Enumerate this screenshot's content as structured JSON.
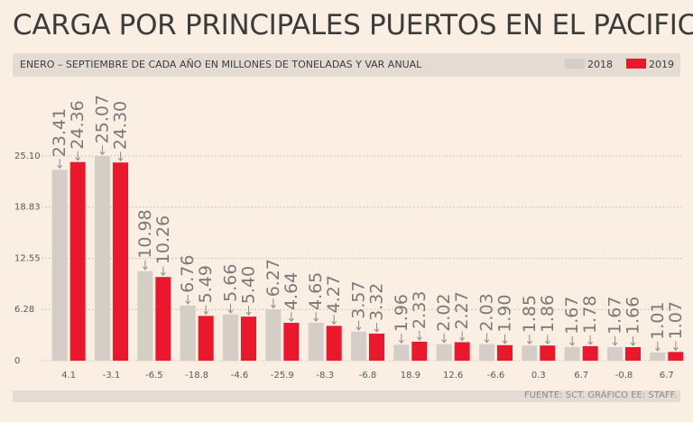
{
  "chart_data": {
    "type": "bar",
    "title": "CARGA POR PRINCIPALES PUERTOS EN EL PACIFICO",
    "subtitle": "ENERO – SEPTIEMBRE DE CADA AÑO EN MILLONES DE TONELADAS Y VAR ANUAL",
    "source": "FUENTE: SCT. GRÁFICO EE: STAFF.",
    "categories": [
      "4.1",
      "-3.1",
      "-6.5",
      "-18.8",
      "-4.6",
      "-25.9",
      "-8.3",
      "-6.8",
      "18.9",
      "12.6",
      "-6.6",
      "0.3",
      "6.7",
      "-0.8",
      "6.7"
    ],
    "series": [
      {
        "name": "2018",
        "color": "#d4cec7",
        "values": [
          23.41,
          25.07,
          10.98,
          6.76,
          5.66,
          6.27,
          4.65,
          3.57,
          1.96,
          2.02,
          2.03,
          1.85,
          1.67,
          1.67,
          1.01
        ]
      },
      {
        "name": "2019",
        "color": "#e8192c",
        "values": [
          24.36,
          24.3,
          10.26,
          5.49,
          5.4,
          4.64,
          4.27,
          3.32,
          2.33,
          2.27,
          1.9,
          1.86,
          1.78,
          1.66,
          1.07
        ]
      }
    ],
    "value_labels": [
      [
        "23.41",
        "25.07",
        "10.98",
        "6.76",
        "5.66",
        "6.27",
        "4.65",
        "3.57",
        "1.96",
        "2.02",
        "2.03",
        "1.85",
        "1.67",
        "1.67",
        "1.01"
      ],
      [
        "24.36",
        "24.30",
        "10.26",
        "5.49",
        "5.40",
        "4.64",
        "4.27",
        "3.32",
        "2.33",
        "2.27",
        "1.90",
        "1.86",
        "1.78",
        "1.66",
        "1.07"
      ]
    ],
    "yticks": [
      0,
      6.28,
      12.55,
      18.83,
      25.1
    ],
    "ytick_labels": [
      "0",
      "6.28",
      "12.55",
      "18.83",
      "25.10"
    ],
    "ylim": [
      0,
      25.1
    ],
    "grid": true,
    "legend": "top-right"
  }
}
